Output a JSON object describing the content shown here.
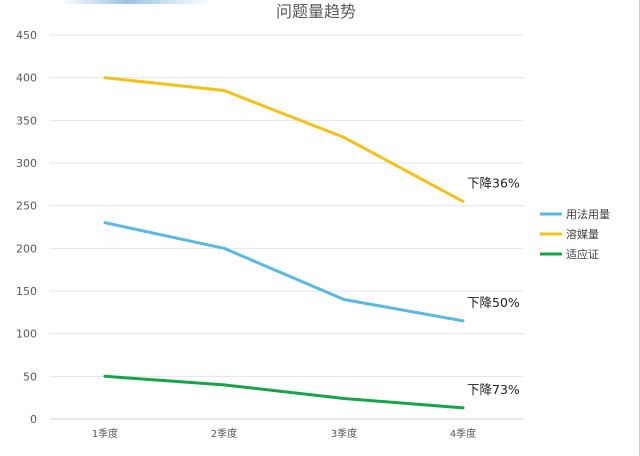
{
  "chart_data": {
    "type": "line",
    "title": "问题量趋势",
    "categories": [
      "1季度",
      "2季度",
      "3季度",
      "4季度"
    ],
    "ylim": [
      0,
      450
    ],
    "yticks": [
      0,
      50,
      100,
      150,
      200,
      250,
      300,
      350,
      400,
      450
    ],
    "grid": true,
    "legend_position": "right",
    "series": [
      {
        "name": "用法用量",
        "color": "#5bb8df",
        "values": [
          230,
          200,
          140,
          115
        ]
      },
      {
        "name": "溶媒量",
        "color": "#f2c21b",
        "values": [
          400,
          385,
          330,
          255
        ]
      },
      {
        "name": "适应证",
        "color": "#17a34a",
        "values": [
          50,
          40,
          24,
          13
        ]
      }
    ],
    "annotations": [
      {
        "text": "下降36%",
        "series": "溶媒量"
      },
      {
        "text": "下降50%",
        "series": "用法用量"
      },
      {
        "text": "下降73%",
        "series": "适应证"
      }
    ]
  }
}
